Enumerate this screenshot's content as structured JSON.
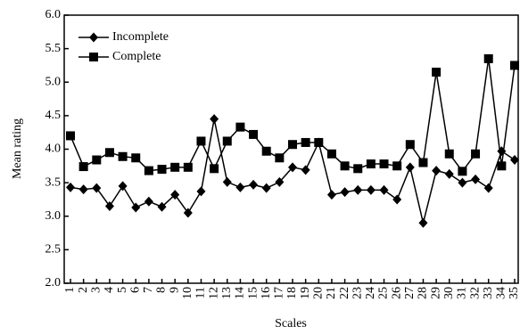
{
  "chart_data": {
    "type": "line",
    "x_label": "Scales",
    "y_label": "Mean rating",
    "categories": [
      "1",
      "2",
      "3",
      "4",
      "5",
      "6",
      "7",
      "8",
      "9",
      "10",
      "11",
      "12",
      "13",
      "14",
      "15",
      "16",
      "17",
      "18",
      "19",
      "20",
      "21",
      "22",
      "23",
      "24",
      "25",
      "26",
      "27",
      "28",
      "29",
      "30",
      "31",
      "32",
      "33",
      "34",
      "35"
    ],
    "series": [
      {
        "name": "Incomplete",
        "color": "#000000",
        "marker": "diamond",
        "values": [
          3.43,
          3.4,
          3.42,
          3.15,
          3.45,
          3.13,
          3.22,
          3.14,
          3.32,
          3.05,
          3.37,
          4.45,
          3.51,
          3.43,
          3.47,
          3.42,
          3.51,
          3.73,
          3.69,
          4.1,
          3.32,
          3.36,
          3.39,
          3.39,
          3.39,
          3.25,
          3.73,
          2.9,
          3.68,
          3.63,
          3.5,
          3.55,
          3.42,
          3.97,
          3.84
        ]
      },
      {
        "name": "Complete",
        "color": "#000000",
        "marker": "square",
        "values": [
          4.2,
          3.74,
          3.84,
          3.95,
          3.89,
          3.87,
          3.68,
          3.7,
          3.73,
          3.73,
          4.12,
          3.71,
          4.12,
          4.33,
          4.22,
          3.97,
          3.87,
          4.07,
          4.1,
          4.1,
          3.93,
          3.75,
          3.71,
          3.78,
          3.78,
          3.75,
          4.07,
          3.8,
          5.15,
          3.93,
          3.67,
          3.93,
          5.35,
          3.75,
          5.25
        ]
      }
    ],
    "ylim": [
      2,
      6
    ],
    "yticks": [
      {
        "value": 2,
        "label": "2.0"
      },
      2.5,
      {
        "value": 3,
        "label": "3.0"
      },
      3.5,
      {
        "value": 4,
        "label": "4.0"
      },
      4.5,
      {
        "value": 5,
        "label": "5.0"
      },
      5.5,
      {
        "value": 6,
        "label": "6.0"
      }
    ],
    "legend": "top-left"
  }
}
